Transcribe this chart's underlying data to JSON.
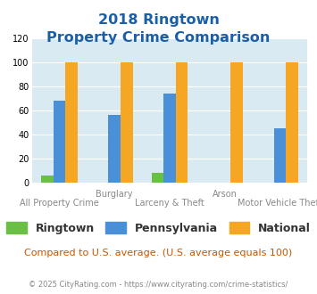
{
  "title_line1": "2018 Ringtown",
  "title_line2": "Property Crime Comparison",
  "ringtown": [
    6,
    0,
    8,
    0,
    0
  ],
  "pennsylvania": [
    68,
    56,
    74,
    0,
    45
  ],
  "national": [
    100,
    100,
    100,
    100,
    100
  ],
  "colors": {
    "ringtown": "#6abf45",
    "pennsylvania": "#4a90d9",
    "national": "#f5a623"
  },
  "ylim": [
    0,
    120
  ],
  "yticks": [
    0,
    20,
    40,
    60,
    80,
    100,
    120
  ],
  "title_color": "#1a5fa8",
  "bg_color": "#d9eaf2",
  "subtitle": "Compared to U.S. average. (U.S. average equals 100)",
  "subtitle_color": "#cc5500",
  "footer": "© 2025 CityRating.com - https://www.cityrating.com/crime-statistics/",
  "footer_color": "#888888",
  "legend_labels": [
    "Ringtown",
    "Pennsylvania",
    "National"
  ],
  "top_xlabels": [
    "",
    "Burglary",
    "",
    "Arson",
    ""
  ],
  "bottom_xlabels": [
    "All Property Crime",
    "",
    "Larceny & Theft",
    "",
    "Motor Vehicle Theft"
  ]
}
